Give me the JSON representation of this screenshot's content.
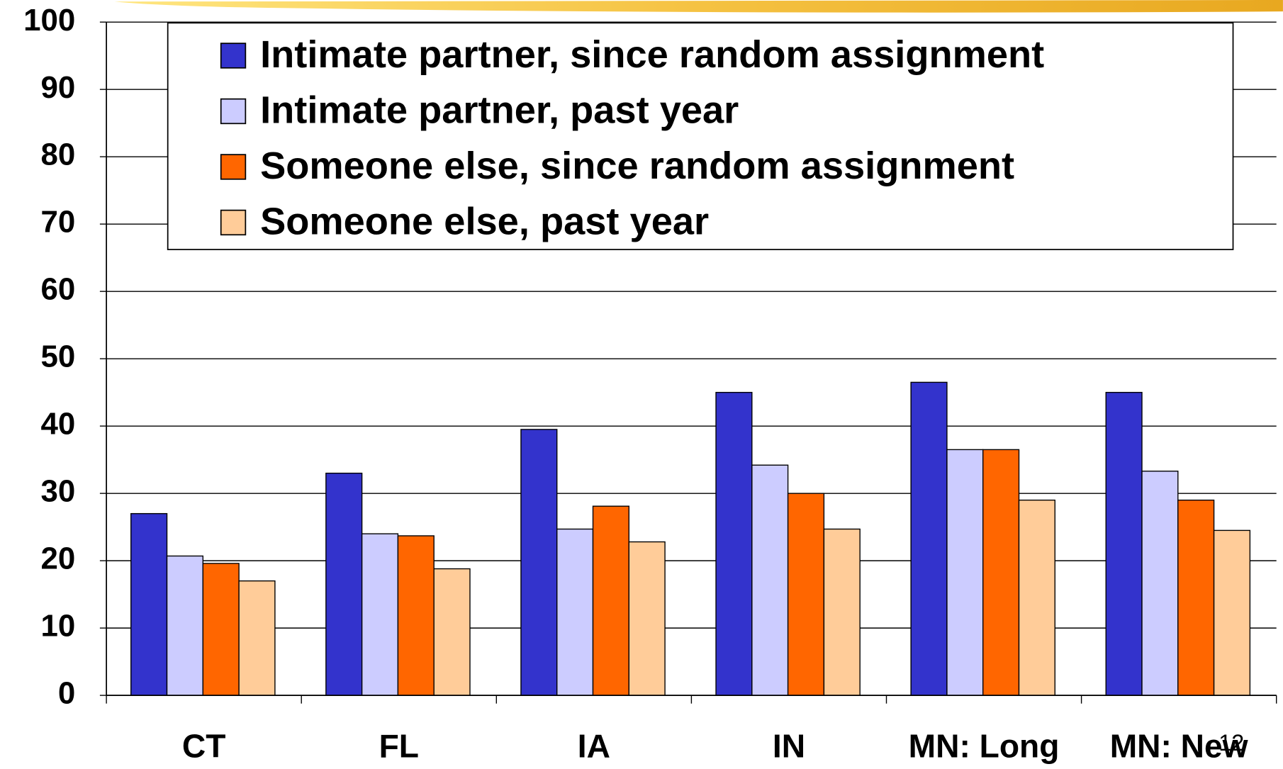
{
  "chart_data": {
    "type": "bar",
    "categories": [
      "CT",
      "FL",
      "IA",
      "IN",
      "MN: Long",
      "MN: New"
    ],
    "series": [
      {
        "name": "Intimate partner, since random assignment",
        "color": "#3333cc",
        "values": [
          27,
          33,
          39.5,
          45,
          46.5,
          45
        ]
      },
      {
        "name": "Intimate partner, past year",
        "color": "#ccccff",
        "values": [
          20.7,
          24,
          24.7,
          34.2,
          36.5,
          33.3
        ]
      },
      {
        "name": "Someone else, since random assignment",
        "color": "#ff6600",
        "values": [
          19.6,
          23.7,
          28.1,
          30,
          36.5,
          29
        ]
      },
      {
        "name": "Someone else, past year",
        "color": "#ffcc99",
        "values": [
          17,
          18.8,
          22.8,
          24.7,
          29,
          24.5
        ]
      }
    ],
    "ylim": [
      0,
      100
    ],
    "yticks": [
      0,
      10,
      20,
      30,
      40,
      50,
      60,
      70,
      80,
      90,
      100
    ],
    "grid": true,
    "legend": "top"
  },
  "slide_number": "12"
}
